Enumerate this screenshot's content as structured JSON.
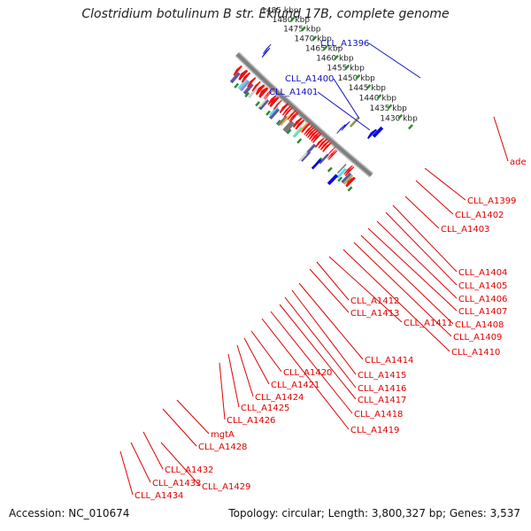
{
  "title": "Clostridium botulinum B str. Eklund 17B, complete genome",
  "footer": {
    "accession": "Accession: NC_010674",
    "topology": "Topology: circular; Length: 3,800,327 bp; Genes: 3,537"
  },
  "colors": {
    "backbone": "#7f7f7f",
    "tick": "#2a8a2a",
    "label_red": "#e00000",
    "label_blue": "#1010c0",
    "gene_red": "#ee1111",
    "gene_blue": "#0a0ae0"
  },
  "ruler": {
    "unit": "kbp",
    "ticks": [
      {
        "value": 1430,
        "label": "1430 kbp"
      },
      {
        "value": 1435,
        "label": "1435 kbp"
      },
      {
        "value": 1440,
        "label": "1440 kbp"
      },
      {
        "value": 1445,
        "label": "1445 kbp"
      },
      {
        "value": 1450,
        "label": "1450 kbp"
      },
      {
        "value": 1455,
        "label": "1455 kbp"
      },
      {
        "value": 1460,
        "label": "1460 kbp"
      },
      {
        "value": 1465,
        "label": "1465 kbp"
      },
      {
        "value": 1470,
        "label": "1470 kbp"
      },
      {
        "value": 1475,
        "label": "1475 kbp"
      },
      {
        "value": 1480,
        "label": "1480 kbp"
      },
      {
        "value": 1485,
        "label": "1485 kbp"
      }
    ]
  },
  "gene_labels_outer": [
    {
      "name": "CLL_A1396",
      "color": "blue"
    },
    {
      "name": "CLL_A1400",
      "color": "blue"
    },
    {
      "name": "CLL_A1401",
      "color": "blue"
    }
  ],
  "gene_labels_inner": [
    {
      "name": "ade"
    },
    {
      "name": "CLL_A1399"
    },
    {
      "name": "CLL_A1402"
    },
    {
      "name": "CLL_A1403"
    },
    {
      "name": "CLL_A1404"
    },
    {
      "name": "CLL_A1405"
    },
    {
      "name": "CLL_A1406"
    },
    {
      "name": "CLL_A1407"
    },
    {
      "name": "CLL_A1408"
    },
    {
      "name": "CLL_A1409"
    },
    {
      "name": "CLL_A1410"
    },
    {
      "name": "CLL_A1411"
    },
    {
      "name": "CLL_A1412"
    },
    {
      "name": "CLL_A1413"
    },
    {
      "name": "CLL_A1414"
    },
    {
      "name": "CLL_A1415"
    },
    {
      "name": "CLL_A1416"
    },
    {
      "name": "CLL_A1417"
    },
    {
      "name": "CLL_A1418"
    },
    {
      "name": "CLL_A1419"
    },
    {
      "name": "CLL_A1420"
    },
    {
      "name": "CLL_A1421"
    },
    {
      "name": "CLL_A1424"
    },
    {
      "name": "CLL_A1425"
    },
    {
      "name": "CLL_A1426"
    },
    {
      "name": "mgtA"
    },
    {
      "name": "CLL_A1428"
    },
    {
      "name": "CLL_A1429"
    },
    {
      "name": "CLL_A1432"
    },
    {
      "name": "CLL_A1433"
    },
    {
      "name": "CLL_A1434"
    }
  ]
}
